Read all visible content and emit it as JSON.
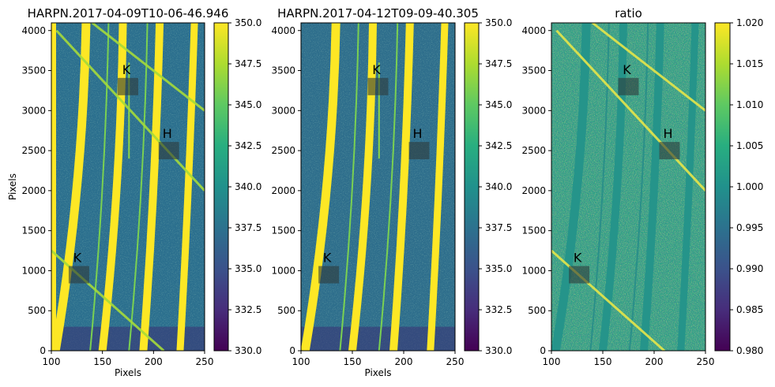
{
  "chart_data": [
    {
      "type": "heatmap",
      "title": "HARPN.2017-04-09T10-06-46.946",
      "xlabel": "Pixels",
      "ylabel": "Pixels",
      "xlim": [
        100,
        250
      ],
      "ylim": [
        0,
        4096
      ],
      "xticks": [
        100,
        150,
        200,
        250
      ],
      "yticks": [
        0,
        500,
        1000,
        1500,
        2000,
        2500,
        3000,
        3500,
        4000
      ],
      "colorbar": {
        "range": [
          330.0,
          350.0
        ],
        "ticks": [
          "330.0",
          "332.5",
          "335.0",
          "337.5",
          "340.0",
          "342.5",
          "345.0",
          "347.5",
          "350.0"
        ],
        "colormap": "viridis"
      },
      "annotations": [
        {
          "label": "K",
          "x": 175,
          "y": 3300
        },
        {
          "label": "H",
          "x": 215,
          "y": 2500
        },
        {
          "label": "K",
          "x": 127,
          "y": 950
        }
      ],
      "cross_lines": true
    },
    {
      "type": "heatmap",
      "title": "HARPN.2017-04-12T09-09-40.305",
      "xlabel": "Pixels",
      "ylabel": "",
      "xlim": [
        100,
        250
      ],
      "ylim": [
        0,
        4096
      ],
      "xticks": [
        100,
        150,
        200,
        250
      ],
      "yticks": [
        0,
        500,
        1000,
        1500,
        2000,
        2500,
        3000,
        3500,
        4000
      ],
      "colorbar": {
        "range": [
          330.0,
          350.0
        ],
        "ticks": [
          "330.0",
          "332.5",
          "335.0",
          "337.5",
          "340.0",
          "342.5",
          "345.0",
          "347.5",
          "350.0"
        ],
        "colormap": "viridis"
      },
      "annotations": [
        {
          "label": "K",
          "x": 175,
          "y": 3300
        },
        {
          "label": "H",
          "x": 215,
          "y": 2500
        },
        {
          "label": "K",
          "x": 127,
          "y": 950
        }
      ],
      "cross_lines": false
    },
    {
      "type": "heatmap",
      "title": "ratio",
      "xlabel": "",
      "ylabel": "",
      "xlim": [
        100,
        250
      ],
      "ylim": [
        0,
        4096
      ],
      "xticks": [
        100,
        150,
        200,
        250
      ],
      "yticks": [
        0,
        500,
        1000,
        1500,
        2000,
        2500,
        3000,
        3500,
        4000
      ],
      "colorbar": {
        "range": [
          0.98,
          1.02
        ],
        "ticks": [
          "0.980",
          "0.985",
          "0.990",
          "0.995",
          "1.000",
          "1.005",
          "1.010",
          "1.015",
          "1.020"
        ],
        "colormap": "viridis"
      },
      "annotations": [
        {
          "label": "K",
          "x": 175,
          "y": 3300
        },
        {
          "label": "H",
          "x": 215,
          "y": 2500
        },
        {
          "label": "K",
          "x": 127,
          "y": 950
        }
      ],
      "cross_lines": true
    }
  ]
}
